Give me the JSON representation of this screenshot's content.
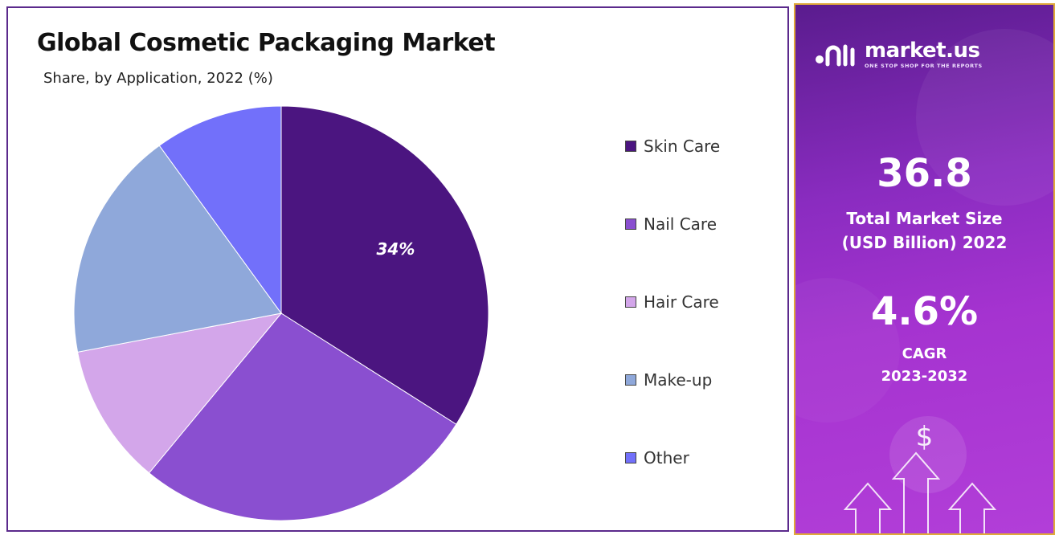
{
  "colors": {
    "skin_care": "#4b1580",
    "nail_care": "#8a4fd0",
    "hair_care": "#d3a6ea",
    "make_up": "#8fa8da",
    "other": "#7270fa",
    "panel_border": "#5b2a8c",
    "side_border": "#e0a93a"
  },
  "chart_data": {
    "type": "pie",
    "title": "Global Cosmetic Packaging Market",
    "subtitle": "Share, by Application, 2022 (%)",
    "categories": [
      "Skin Care",
      "Nail Care",
      "Hair Care",
      "Make-up",
      "Other"
    ],
    "values": [
      34,
      27,
      11,
      18,
      10
    ],
    "data_labels": [
      "34%",
      "",
      "",
      "",
      ""
    ],
    "legend_position": "right"
  },
  "sidebar": {
    "brand_name": "market.us",
    "brand_tagline": "ONE STOP SHOP FOR THE REPORTS",
    "logo_icon": "market-us-logo-icon",
    "market_size_value": "36.8",
    "market_size_label_1": "Total Market Size",
    "market_size_label_2": "(USD Billion) 2022",
    "cagr_value": "4.6%",
    "cagr_label_1": "CAGR",
    "cagr_label_2": "2023-2032",
    "currency_symbol": "$",
    "arrows_icon": "growth-arrows-icon"
  }
}
